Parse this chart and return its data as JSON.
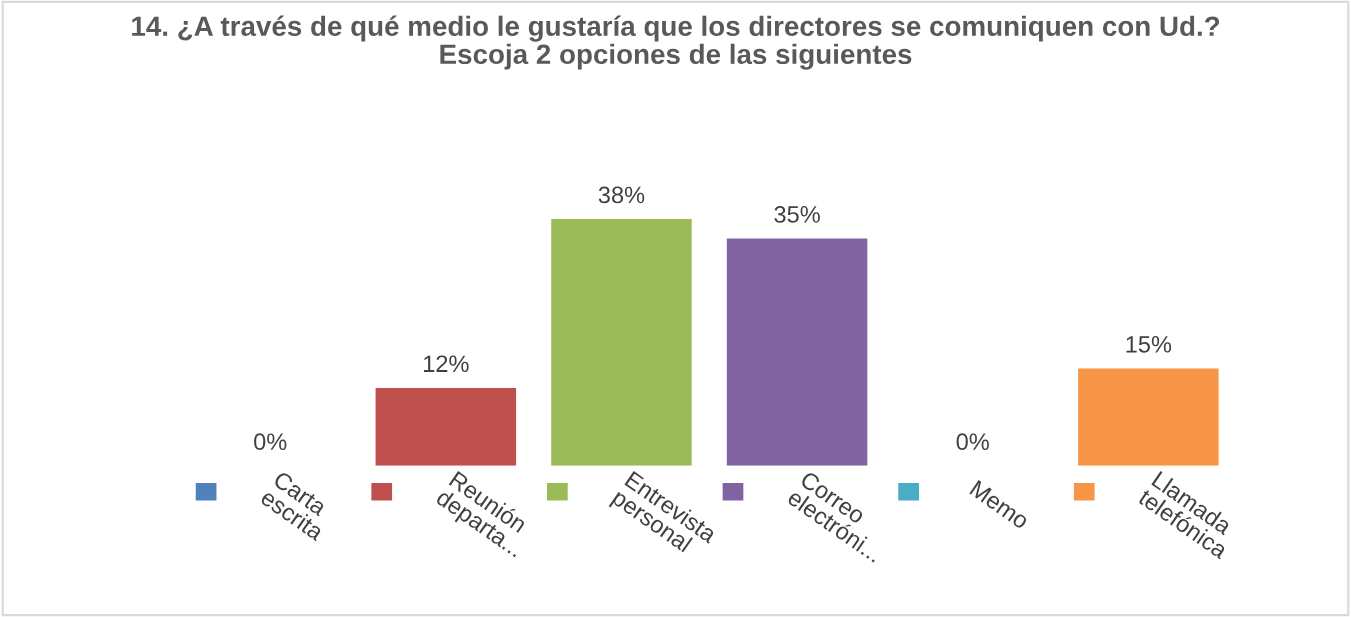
{
  "chart_data": {
    "type": "bar",
    "title": "14. ¿A través de qué medio le gustaría que los directores se comuniquen con Ud.?\nEscoja 2 opciones de las siguientes",
    "categories": [
      "Carta\nescrita",
      "Reunión\ndeparta...",
      "Entrevista\npersonal",
      "Correo\nelectróni...",
      "Memo",
      "Llamada\ntelefónica"
    ],
    "values": [
      0,
      12,
      38,
      35,
      0,
      15
    ],
    "value_labels": [
      "0%",
      "12%",
      "38%",
      "35%",
      "0%",
      "15%"
    ],
    "colors": [
      "#4f81bd",
      "#c0504d",
      "#9bbb59",
      "#8064a2",
      "#4bacc6",
      "#f79646"
    ]
  }
}
